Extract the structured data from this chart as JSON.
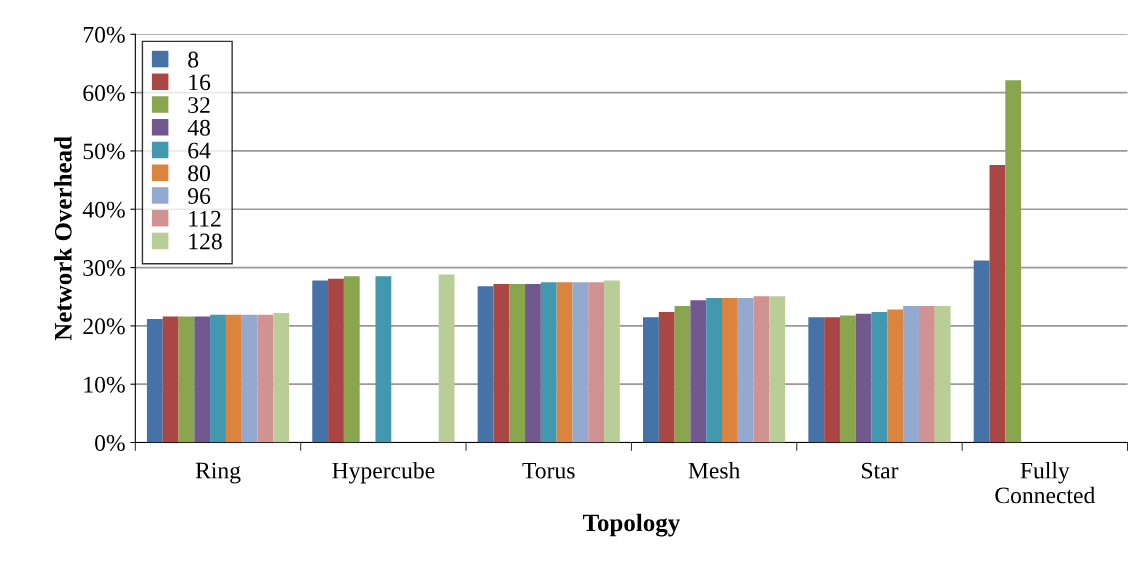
{
  "chart_data": {
    "type": "bar",
    "xlabel": "Topology",
    "ylabel": "Network Overhead",
    "categories": [
      "Ring",
      "Hypercube",
      "Torus",
      "Mesh",
      "Star",
      "Fully\nConnected"
    ],
    "series": [
      {
        "name": "8",
        "color": "#4572a7",
        "values": [
          21.2,
          27.8,
          26.8,
          21.5,
          21.5,
          31.2
        ]
      },
      {
        "name": "16",
        "color": "#aa4643",
        "values": [
          21.6,
          28.1,
          27.2,
          22.4,
          21.5,
          47.6
        ]
      },
      {
        "name": "32",
        "color": "#89a54e",
        "values": [
          21.6,
          28.5,
          27.2,
          23.4,
          21.8,
          62.1
        ]
      },
      {
        "name": "48",
        "color": "#71588f",
        "values": [
          21.6,
          null,
          27.2,
          24.4,
          22.1,
          null
        ]
      },
      {
        "name": "64",
        "color": "#4198af",
        "values": [
          21.9,
          28.5,
          27.5,
          24.8,
          22.4,
          null
        ]
      },
      {
        "name": "80",
        "color": "#db843d",
        "values": [
          21.9,
          null,
          27.5,
          24.8,
          22.8,
          null
        ]
      },
      {
        "name": "96",
        "color": "#93a9cf",
        "values": [
          21.9,
          null,
          27.5,
          24.8,
          23.4,
          null
        ]
      },
      {
        "name": "112",
        "color": "#d19392",
        "values": [
          21.9,
          null,
          27.5,
          25.1,
          23.4,
          null
        ]
      },
      {
        "name": "128",
        "color": "#b9cd96",
        "values": [
          22.2,
          28.8,
          27.8,
          25.1,
          23.4,
          null
        ]
      }
    ],
    "ylim": [
      0,
      70
    ],
    "yticks": [
      {
        "value": 0,
        "label": "0%"
      },
      {
        "value": 10,
        "label": "10%"
      },
      {
        "value": 20,
        "label": "20%"
      },
      {
        "value": 30,
        "label": "30%"
      },
      {
        "value": 40,
        "label": "40%"
      },
      {
        "value": 50,
        "label": "50%"
      },
      {
        "value": 60,
        "label": "60%"
      },
      {
        "value": 70,
        "label": "70%"
      }
    ],
    "grid": "y",
    "legend": "top left"
  }
}
